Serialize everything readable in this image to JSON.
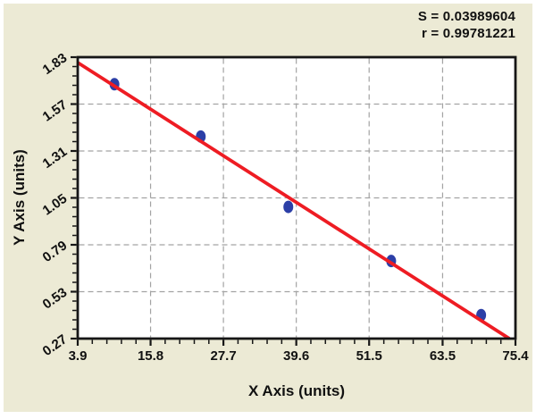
{
  "window": {
    "background": "#ffffff",
    "panel_background": "#ecead5"
  },
  "chart_data": {
    "type": "scatter",
    "title": "",
    "xlabel": "X Axis (units)",
    "ylabel": "Y Axis (units)",
    "xlim": [
      3.9,
      75.4
    ],
    "ylim": [
      0.27,
      1.83
    ],
    "x_ticks": [
      "3.9",
      "15.8",
      "27.7",
      "39.6",
      "51.5",
      "63.5",
      "75.4"
    ],
    "y_ticks": [
      "0.27",
      "0.53",
      "0.79",
      "1.05",
      "1.31",
      "1.57",
      "1.83"
    ],
    "minor_ticks_per_interval": 4,
    "grid": "dashed",
    "legend": "none",
    "points": [
      {
        "x": 9.9,
        "y": 1.68
      },
      {
        "x": 24.0,
        "y": 1.39
      },
      {
        "x": 38.3,
        "y": 1.0
      },
      {
        "x": 55.1,
        "y": 0.7
      },
      {
        "x": 69.8,
        "y": 0.4
      }
    ],
    "fit_line": {
      "x_start": 3.9,
      "y_start": 1.8,
      "x_end": 74.4,
      "y_end": 0.27
    },
    "annotations": [
      "S = 0.03989604",
      "r = 0.99781221"
    ],
    "stats": {
      "S": "0.03989604",
      "r": "0.99781221"
    },
    "colors": {
      "panel_background": "#ecead5",
      "plot_background": "#ffffff",
      "fit_line": "#ee1c23",
      "point_fill": "#2c3fa7",
      "grid": "#a3a3a3",
      "axis": "#161616",
      "text": "#111111"
    }
  }
}
